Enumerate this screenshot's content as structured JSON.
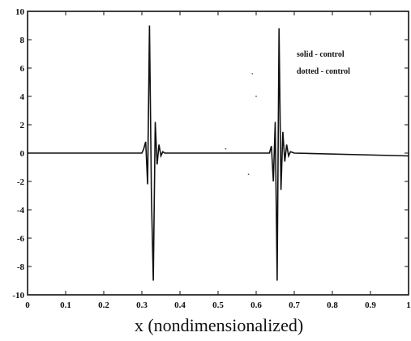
{
  "chart_data": {
    "type": "line",
    "title": "",
    "xlabel": "x (nondimensionalized)",
    "ylabel": "",
    "xlim": [
      0,
      1
    ],
    "ylim": [
      -10,
      10
    ],
    "x_ticks": [
      "0",
      "0.1",
      "0.2",
      "0.3",
      "0.4",
      "0.5",
      "0.6",
      "0.7",
      "0.8",
      "0.9",
      "1"
    ],
    "y_ticks": [
      "10",
      "8",
      "6",
      "4",
      "2",
      "0",
      "-2",
      "-4",
      "-6",
      "-8",
      "-10"
    ],
    "grid": false,
    "legend_text": [
      "solid - control",
      "dotted - control"
    ],
    "legend_position": "top-right",
    "series": [
      {
        "name": "solid - control",
        "style": "solid",
        "color": "#111111",
        "x": [
          0,
          0.3,
          0.305,
          0.31,
          0.315,
          0.32,
          0.325,
          0.33,
          0.335,
          0.34,
          0.345,
          0.35,
          0.355,
          0.36,
          0.62,
          0.635,
          0.64,
          0.645,
          0.65,
          0.655,
          0.66,
          0.665,
          0.67,
          0.675,
          0.68,
          0.685,
          0.69,
          0.7,
          1.0
        ],
        "y": [
          0,
          0,
          0.3,
          0.8,
          -2.2,
          9.0,
          -3.0,
          -9.0,
          2.2,
          -0.8,
          0.6,
          -0.2,
          0.1,
          0,
          0,
          0,
          0.5,
          -2.0,
          2.2,
          -9.0,
          8.8,
          -2.6,
          1.5,
          -0.6,
          0.6,
          -0.2,
          0.1,
          0,
          -0.2
        ]
      }
    ],
    "annotation_points": [
      {
        "x": 0.52,
        "y": 0.3
      },
      {
        "x": 0.6,
        "y": 4.0
      },
      {
        "x": 0.59,
        "y": 5.6
      },
      {
        "x": 0.58,
        "y": -1.5
      }
    ]
  }
}
